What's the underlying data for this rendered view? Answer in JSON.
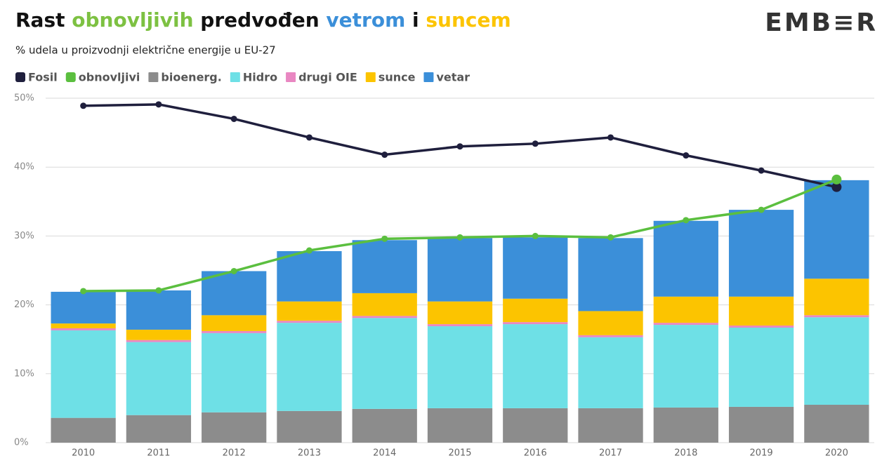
{
  "chart_data": {
    "type": "stacked_bar_line",
    "title": [
      {
        "text": "Rast ",
        "color": "#111111"
      },
      {
        "text": "obnovljivih",
        "color": "#7dc142"
      },
      {
        "text": " predvođen ",
        "color": "#111111"
      },
      {
        "text": "vetrom",
        "color": "#3b8fd9"
      },
      {
        "text": " i ",
        "color": "#111111"
      },
      {
        "text": "suncem",
        "color": "#fcc400"
      }
    ],
    "logo": "EMB≡R",
    "subtitle": "% udela u proizvodnji električne energije u EU-27",
    "categories": [
      "2010",
      "2011",
      "2012",
      "2013",
      "2014",
      "2015",
      "2016",
      "2017",
      "2018",
      "2019",
      "2020"
    ],
    "series": [
      {
        "name": "bioenerg.",
        "color": "#8c8c8c",
        "values": [
          3.6,
          4.0,
          4.4,
          4.6,
          4.9,
          5.0,
          5.0,
          5.0,
          5.1,
          5.2,
          5.5
        ]
      },
      {
        "name": "Hidro",
        "color": "#6ee0e6",
        "values": [
          12.7,
          10.6,
          11.5,
          12.8,
          13.2,
          11.9,
          12.2,
          10.3,
          12.0,
          11.5,
          12.7
        ]
      },
      {
        "name": "drugi OIE",
        "color": "#e987c2",
        "values": [
          0.3,
          0.3,
          0.3,
          0.3,
          0.3,
          0.3,
          0.3,
          0.3,
          0.3,
          0.3,
          0.3
        ]
      },
      {
        "name": "sunce",
        "color": "#fcc400",
        "values": [
          0.7,
          1.5,
          2.3,
          2.8,
          3.3,
          3.3,
          3.4,
          3.5,
          3.8,
          4.2,
          5.3
        ]
      },
      {
        "name": "vetar",
        "color": "#3b8fd9",
        "values": [
          4.6,
          5.7,
          6.4,
          7.3,
          7.7,
          9.2,
          8.9,
          10.6,
          11.0,
          12.6,
          14.3
        ]
      }
    ],
    "lines": [
      {
        "name": "Fosil",
        "color": "#1f1f3d",
        "values": [
          48.9,
          49.1,
          47.0,
          44.3,
          41.8,
          43.0,
          43.4,
          44.3,
          41.7,
          39.5,
          37.1
        ]
      },
      {
        "name": "obnovljivi",
        "color": "#5bbf3f",
        "values": [
          22.0,
          22.1,
          24.9,
          27.9,
          29.6,
          29.8,
          30.0,
          29.8,
          32.3,
          33.8,
          38.2
        ]
      }
    ],
    "legend_order": [
      "lines.0",
      "lines.1",
      "series.0",
      "series.1",
      "series.2",
      "series.3",
      "series.4"
    ],
    "ylim": [
      0,
      50
    ],
    "yticks": [
      {
        "value": 0,
        "label": "0%"
      },
      {
        "value": 10,
        "label": "10%"
      },
      {
        "value": 20,
        "label": "20%"
      },
      {
        "value": 30,
        "label": "30%"
      },
      {
        "value": 40,
        "label": "40%"
      },
      {
        "value": 50,
        "label": "50%"
      }
    ],
    "grid": true
  }
}
